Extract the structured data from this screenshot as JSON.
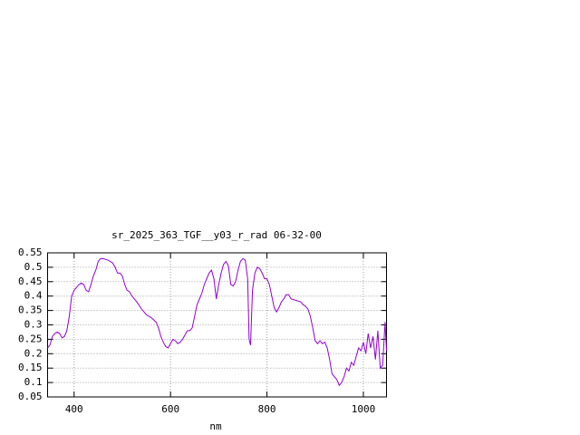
{
  "chart_data": {
    "type": "line",
    "title": "sr_2025_363_TGF__y03_r_rad 06-32-00",
    "x_label": "nm",
    "x": [
      345,
      350,
      355,
      360,
      365,
      370,
      375,
      380,
      385,
      390,
      395,
      400,
      405,
      410,
      415,
      420,
      425,
      430,
      435,
      440,
      445,
      450,
      455,
      460,
      470,
      480,
      485,
      490,
      495,
      500,
      505,
      510,
      515,
      520,
      530,
      540,
      550,
      560,
      570,
      575,
      580,
      585,
      590,
      595,
      600,
      605,
      610,
      615,
      620,
      625,
      630,
      635,
      640,
      645,
      650,
      655,
      660,
      665,
      670,
      675,
      680,
      685,
      690,
      695,
      700,
      705,
      710,
      715,
      720,
      725,
      730,
      735,
      740,
      745,
      750,
      755,
      760,
      763,
      766,
      770,
      775,
      780,
      785,
      790,
      795,
      800,
      805,
      810,
      815,
      820,
      825,
      830,
      835,
      840,
      845,
      850,
      860,
      870,
      875,
      880,
      885,
      890,
      895,
      900,
      905,
      910,
      915,
      920,
      925,
      930,
      935,
      940,
      945,
      950,
      955,
      960,
      965,
      970,
      975,
      980,
      985,
      990,
      995,
      1000,
      1005,
      1010,
      1015,
      1020,
      1025,
      1030,
      1035,
      1040,
      1045,
      1048
    ],
    "values": [
      0.22,
      0.23,
      0.26,
      0.27,
      0.275,
      0.27,
      0.255,
      0.26,
      0.28,
      0.33,
      0.4,
      0.42,
      0.43,
      0.44,
      0.445,
      0.44,
      0.42,
      0.415,
      0.44,
      0.47,
      0.49,
      0.52,
      0.53,
      0.53,
      0.525,
      0.515,
      0.5,
      0.48,
      0.48,
      0.47,
      0.44,
      0.42,
      0.415,
      0.4,
      0.38,
      0.355,
      0.335,
      0.325,
      0.31,
      0.29,
      0.26,
      0.24,
      0.225,
      0.22,
      0.235,
      0.25,
      0.245,
      0.235,
      0.24,
      0.25,
      0.265,
      0.28,
      0.28,
      0.29,
      0.33,
      0.37,
      0.39,
      0.41,
      0.44,
      0.46,
      0.48,
      0.49,
      0.46,
      0.39,
      0.44,
      0.48,
      0.51,
      0.52,
      0.505,
      0.44,
      0.435,
      0.45,
      0.49,
      0.52,
      0.53,
      0.525,
      0.46,
      0.25,
      0.23,
      0.42,
      0.48,
      0.5,
      0.495,
      0.48,
      0.46,
      0.46,
      0.44,
      0.4,
      0.36,
      0.345,
      0.36,
      0.38,
      0.39,
      0.405,
      0.405,
      0.39,
      0.385,
      0.38,
      0.37,
      0.365,
      0.355,
      0.33,
      0.29,
      0.245,
      0.235,
      0.245,
      0.235,
      0.24,
      0.22,
      0.18,
      0.13,
      0.12,
      0.11,
      0.09,
      0.1,
      0.12,
      0.15,
      0.14,
      0.17,
      0.16,
      0.19,
      0.22,
      0.21,
      0.24,
      0.2,
      0.27,
      0.22,
      0.26,
      0.18,
      0.28,
      0.15,
      0.16,
      0.31,
      0.21
    ],
    "color": "#9400d3",
    "xlim": [
      345,
      1048
    ],
    "ylim": [
      0.05,
      0.55
    ],
    "xticks": [
      400,
      600,
      800,
      1000
    ],
    "yticks": [
      0.05,
      0.1,
      0.15,
      0.2,
      0.25,
      0.3,
      0.35,
      0.4,
      0.45,
      0.5,
      0.55
    ],
    "grid": true
  }
}
